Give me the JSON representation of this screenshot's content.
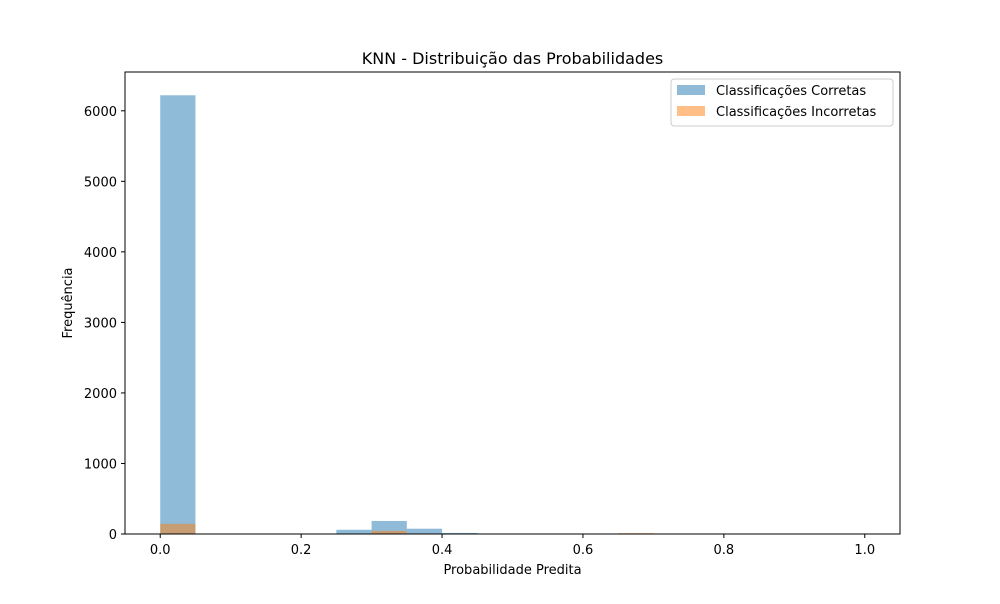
{
  "chart_data": {
    "type": "bar",
    "title": "KNN - Distribuição das Probabilidades",
    "xlabel": "Probabilidade Predita",
    "ylabel": "Frequência",
    "xlim": [
      -0.05,
      1.05
    ],
    "ylim": [
      0,
      6550
    ],
    "x_ticks": [
      0.0,
      0.2,
      0.4,
      0.6,
      0.8,
      1.0
    ],
    "x_tick_labels": [
      "0.0",
      "0.2",
      "0.4",
      "0.6",
      "0.8",
      "1.0"
    ],
    "y_ticks": [
      0,
      1000,
      2000,
      3000,
      4000,
      5000,
      6000
    ],
    "y_tick_labels": [
      "0",
      "1000",
      "2000",
      "3000",
      "4000",
      "5000",
      "6000"
    ],
    "bin_width": 0.05,
    "legend_position": "top-right",
    "grid": false,
    "series": [
      {
        "name": "Classificações Corretas",
        "color": "#1f77b4",
        "alpha": 0.5,
        "bins": [
          {
            "x0": 0.0,
            "value": 6220
          },
          {
            "x0": 0.25,
            "value": 60
          },
          {
            "x0": 0.3,
            "value": 185
          },
          {
            "x0": 0.35,
            "value": 75
          },
          {
            "x0": 0.4,
            "value": 15
          },
          {
            "x0": 0.65,
            "value": 6
          }
        ]
      },
      {
        "name": "Classificações Incorretas",
        "color": "#ff7f0e",
        "alpha": 0.5,
        "bins": [
          {
            "x0": 0.0,
            "value": 145
          },
          {
            "x0": 0.25,
            "value": 5
          },
          {
            "x0": 0.3,
            "value": 45
          },
          {
            "x0": 0.35,
            "value": 8
          },
          {
            "x0": 0.65,
            "value": 12
          }
        ]
      }
    ]
  }
}
